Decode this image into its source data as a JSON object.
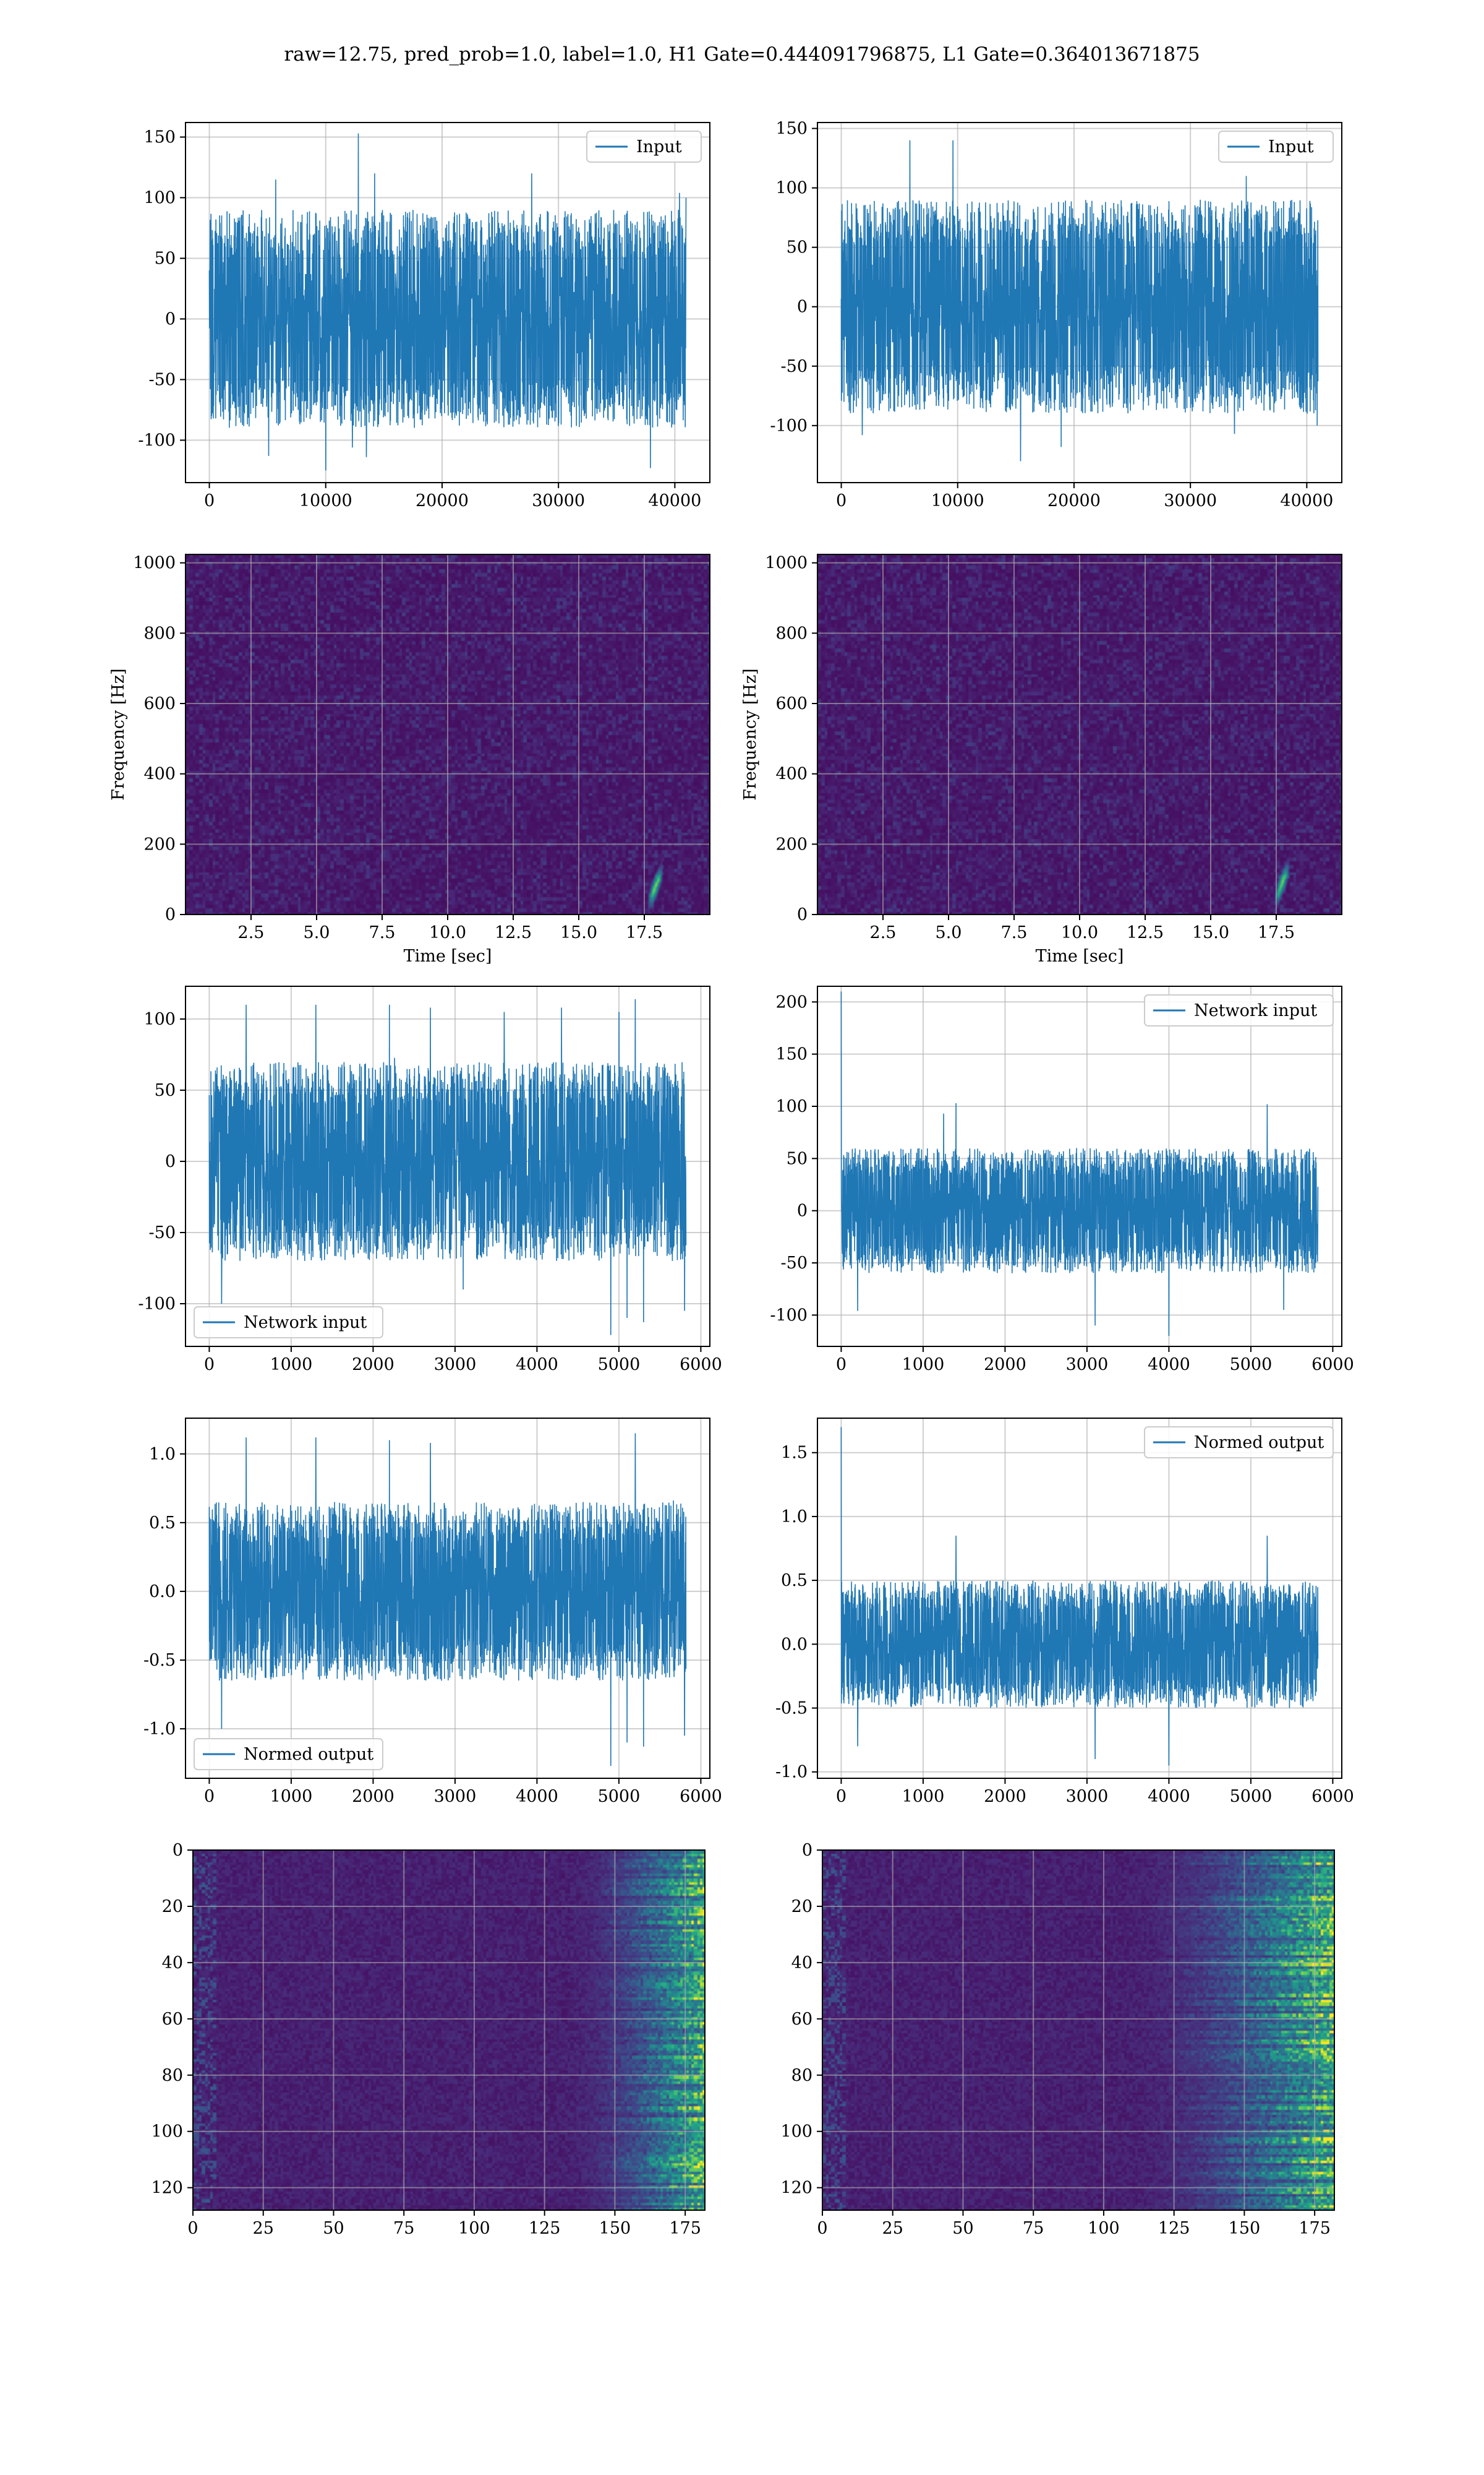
{
  "figure": {
    "suptitle": "raw=12.75, pred_prob=1.0, label=1.0, H1 Gate=0.444091796875, L1 Gate=0.364013671875",
    "line_color": "#1f77b4"
  },
  "chart_data": [
    {
      "id": "input-h1",
      "type": "line",
      "legend": "Input",
      "legend_loc": "upper right",
      "xlim": [
        -2048,
        43008
      ],
      "ylim": [
        -135,
        162
      ],
      "grid": true,
      "xticks": [
        0,
        10000,
        20000,
        30000,
        40000
      ],
      "yticks": [
        -100,
        -50,
        0,
        50,
        100,
        150
      ],
      "series": [
        {
          "name": "Input",
          "x_range": [
            0,
            40960
          ],
          "amplitude": 25,
          "typical_max": 90,
          "typical_min": -90,
          "spikes": [
            [
              5700,
              115
            ],
            [
              12800,
              153
            ],
            [
              14200,
              120
            ],
            [
              27700,
              120
            ],
            [
              40400,
              104
            ],
            [
              12300,
              -106
            ],
            [
              13500,
              -114
            ],
            [
              10000,
              -125
            ],
            [
              37900,
              -123
            ],
            [
              5100,
              -113
            ],
            [
              41000,
              100
            ],
            [
              0,
              40
            ]
          ]
        }
      ]
    },
    {
      "id": "input-l1",
      "type": "line",
      "legend": "Input",
      "legend_loc": "upper right",
      "xlim": [
        -2048,
        43008
      ],
      "ylim": [
        -148,
        155
      ],
      "grid": true,
      "xticks": [
        0,
        10000,
        20000,
        30000,
        40000
      ],
      "yticks": [
        -100,
        -50,
        0,
        50,
        100,
        150
      ],
      "series": [
        {
          "name": "Input",
          "x_range": [
            0,
            40960
          ],
          "amplitude": 25,
          "typical_max": 90,
          "typical_min": -90,
          "spikes": [
            [
              9600,
              140
            ],
            [
              5900,
              140
            ],
            [
              34800,
              110
            ],
            [
              15400,
              -130
            ],
            [
              1800,
              -108
            ],
            [
              18900,
              -118
            ],
            [
              33800,
              -107
            ],
            [
              40900,
              -100
            ]
          ]
        }
      ]
    },
    {
      "id": "spectrogram-h1",
      "type": "heatmap",
      "colormap": "viridis",
      "xlabel": "Time [sec]",
      "ylabel": "Frequency [Hz]",
      "xlim": [
        0,
        20
      ],
      "ylim": [
        0,
        1024
      ],
      "grid": true,
      "xticks": [
        2.5,
        5.0,
        7.5,
        10.0,
        12.5,
        15.0,
        17.5
      ],
      "yticks": [
        0,
        200,
        400,
        600,
        800,
        1000
      ],
      "chirp": {
        "t_start": 17.6,
        "t_end": 18.2,
        "f_start": 30,
        "f_end": 130
      }
    },
    {
      "id": "spectrogram-l1",
      "type": "heatmap",
      "colormap": "viridis",
      "xlabel": "Time [sec]",
      "ylabel": "Frequency [Hz]",
      "xlim": [
        0,
        20
      ],
      "ylim": [
        0,
        1024
      ],
      "grid": true,
      "xticks": [
        2.5,
        5.0,
        7.5,
        10.0,
        12.5,
        15.0,
        17.5
      ],
      "yticks": [
        0,
        200,
        400,
        600,
        800,
        1000
      ],
      "chirp": {
        "t_start": 17.4,
        "t_end": 18.0,
        "f_start": 40,
        "f_end": 140
      }
    },
    {
      "id": "network-input-h1",
      "type": "line",
      "legend": "Network input",
      "legend_loc": "lower left",
      "xlim": [
        -290,
        6110
      ],
      "ylim": [
        -130,
        123
      ],
      "grid": true,
      "xticks": [
        0,
        1000,
        2000,
        3000,
        4000,
        5000,
        6000
      ],
      "yticks": [
        -100,
        -50,
        0,
        50,
        100
      ],
      "series": [
        {
          "name": "Network input",
          "x_range": [
            0,
            5820
          ],
          "amplitude": 22,
          "typical_max": 70,
          "typical_min": -70,
          "spikes": [
            [
              450,
              110
            ],
            [
              1300,
              110
            ],
            [
              2200,
              110
            ],
            [
              2700,
              108
            ],
            [
              3600,
              105
            ],
            [
              4300,
              108
            ],
            [
              5200,
              114
            ],
            [
              5000,
              105
            ],
            [
              4900,
              -122
            ],
            [
              5100,
              -110
            ],
            [
              5300,
              -113
            ],
            [
              5800,
              -105
            ],
            [
              150,
              -100
            ],
            [
              3100,
              -90
            ]
          ]
        }
      ]
    },
    {
      "id": "network-input-l1",
      "type": "line",
      "legend": "Network input",
      "legend_loc": "upper right",
      "xlim": [
        -290,
        6110
      ],
      "ylim": [
        -130,
        215
      ],
      "grid": true,
      "xticks": [
        0,
        1000,
        2000,
        3000,
        4000,
        5000,
        6000
      ],
      "yticks": [
        -100,
        -50,
        0,
        50,
        100,
        150,
        200
      ],
      "series": [
        {
          "name": "Network input",
          "x_range": [
            0,
            5820
          ],
          "amplitude": 18,
          "typical_max": 60,
          "typical_min": -60,
          "spikes": [
            [
              0,
              210
            ],
            [
              1400,
              103
            ],
            [
              1250,
              93
            ],
            [
              5200,
              102
            ],
            [
              3100,
              -110
            ],
            [
              4000,
              -120
            ],
            [
              200,
              -96
            ],
            [
              5400,
              -95
            ]
          ]
        }
      ]
    },
    {
      "id": "normed-output-h1",
      "type": "line",
      "legend": "Normed output",
      "legend_loc": "lower left",
      "xlim": [
        -290,
        6110
      ],
      "ylim": [
        -1.36,
        1.26
      ],
      "grid": true,
      "xticks": [
        0,
        1000,
        2000,
        3000,
        4000,
        5000,
        6000
      ],
      "yticks": [
        -1.0,
        -0.5,
        0.0,
        0.5,
        1.0
      ],
      "series": [
        {
          "name": "Normed output",
          "x_range": [
            0,
            5820
          ],
          "amplitude": 0.2,
          "typical_max": 0.65,
          "typical_min": -0.65,
          "spikes": [
            [
              450,
              1.12
            ],
            [
              1300,
              1.12
            ],
            [
              2200,
              1.1
            ],
            [
              2700,
              1.08
            ],
            [
              5200,
              1.15
            ],
            [
              4900,
              -1.27
            ],
            [
              5100,
              -1.1
            ],
            [
              5300,
              -1.13
            ],
            [
              5800,
              -1.05
            ],
            [
              150,
              -1.0
            ]
          ]
        }
      ]
    },
    {
      "id": "normed-output-l1",
      "type": "line",
      "legend": "Normed output",
      "legend_loc": "upper right",
      "xlim": [
        -290,
        6110
      ],
      "ylim": [
        -1.05,
        1.77
      ],
      "grid": true,
      "xticks": [
        0,
        1000,
        2000,
        3000,
        4000,
        5000,
        6000
      ],
      "yticks": [
        -1.0,
        -0.5,
        0.0,
        0.5,
        1.0,
        1.5
      ],
      "series": [
        {
          "name": "Normed output",
          "x_range": [
            0,
            5820
          ],
          "amplitude": 0.15,
          "typical_max": 0.5,
          "typical_min": -0.5,
          "spikes": [
            [
              0,
              1.7
            ],
            [
              1400,
              0.85
            ],
            [
              5200,
              0.85
            ],
            [
              3100,
              -0.9
            ],
            [
              4000,
              -0.95
            ],
            [
              200,
              -0.8
            ]
          ]
        }
      ]
    },
    {
      "id": "feature-map-h1",
      "type": "heatmap",
      "colormap": "viridis",
      "rows": 128,
      "cols": 182,
      "xlim": [
        0,
        182
      ],
      "ylim": [
        128,
        0
      ],
      "grid": true,
      "xticks": [
        0,
        25,
        50,
        75,
        100,
        125,
        150,
        175
      ],
      "yticks": [
        0,
        20,
        40,
        60,
        80,
        100,
        120
      ],
      "activation_onset_col": 130
    },
    {
      "id": "feature-map-l1",
      "type": "heatmap",
      "colormap": "viridis",
      "rows": 128,
      "cols": 182,
      "xlim": [
        0,
        182
      ],
      "ylim": [
        128,
        0
      ],
      "grid": true,
      "xticks": [
        0,
        25,
        50,
        75,
        100,
        125,
        150,
        175
      ],
      "yticks": [
        0,
        20,
        40,
        60,
        80,
        100,
        120
      ],
      "activation_onset_col": 105
    }
  ]
}
